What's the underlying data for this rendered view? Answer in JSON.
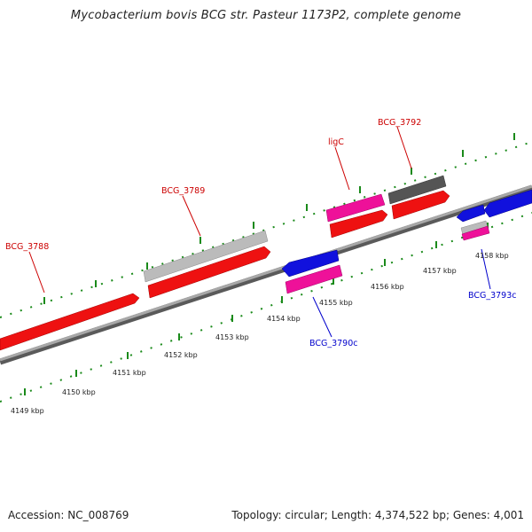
{
  "title": "Mycobacterium bovis BCG str. Pasteur 1173P2, complete genome",
  "footer": {
    "accession": "Accession: NC_008769",
    "summary": "Topology: circular; Length: 4,374,522 bp; Genes: 4,001"
  },
  "colors": {
    "forward_gene": "#ee1111",
    "reverse_gene": "#1111dd",
    "pink_feature": "#ee1199",
    "light_gray_feature": "#bbbbbb",
    "dark_gray_feature": "#555555",
    "backbone": "#808080",
    "ticks": "#1a8a1a",
    "forward_label": "#cc0000",
    "reverse_label": "#0000cc"
  },
  "axis": {
    "unit": "kbp",
    "tick_labels": [
      "4149 kbp",
      "4150 kbp",
      "4151 kbp",
      "4152 kbp",
      "4153 kbp",
      "4154 kbp",
      "4155 kbp",
      "4156 kbp",
      "4157 kbp",
      "4158 kbp"
    ]
  },
  "gene_labels": {
    "forward": [
      "BCG_3788",
      "BCG_3789",
      "ligC",
      "BCG_3792"
    ],
    "reverse": [
      "BCG_3790c",
      "BCG_3793c"
    ]
  }
}
